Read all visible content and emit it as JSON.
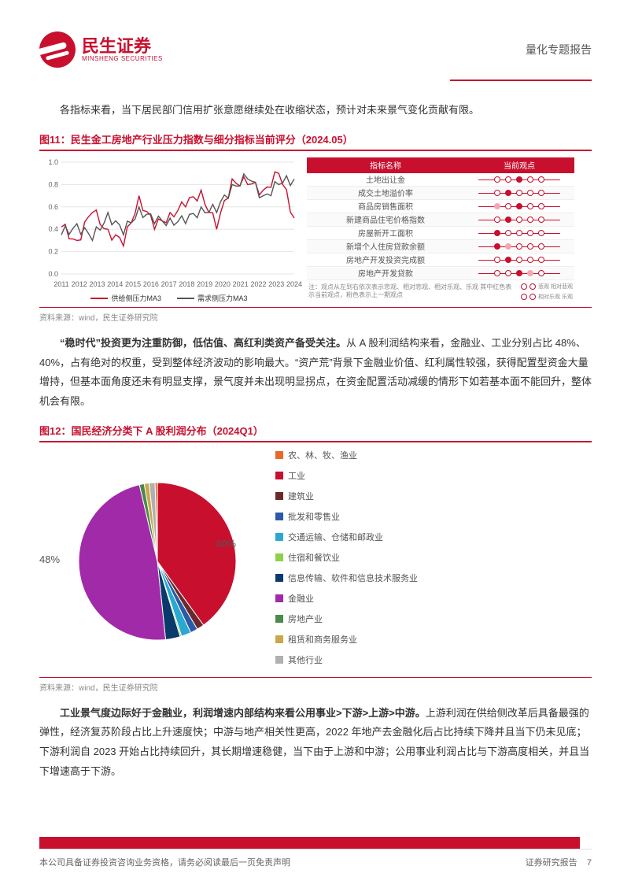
{
  "header": {
    "logo_cn": "民生证券",
    "logo_en": "MINSHENG SECURITIES",
    "right": "量化专题报告"
  },
  "para1": "各指标来看，当下居民部门信用扩张意愿继续处在收缩状态，预计对未来景气变化贡献有限。",
  "fig11": {
    "caption": "图11：民生金工房地产行业压力指数与细分指标当前评分（2024.05）",
    "source": "资料来源：wind，民生证券研究院",
    "chart": {
      "type": "line",
      "ylim": [
        0,
        1.0
      ],
      "yticks": [
        0,
        0.2,
        0.4,
        0.6,
        0.8,
        1.0
      ],
      "xlabels": [
        "2011",
        "2012",
        "2013",
        "2014",
        "2015",
        "2016",
        "2017",
        "2018",
        "2019",
        "2020",
        "2021",
        "2022",
        "2023",
        "2024"
      ],
      "series": [
        {
          "name": "供给侧压力MA3",
          "color": "#c8102e",
          "values": [
            0.42,
            0.3,
            0.55,
            0.4,
            0.25,
            0.7,
            0.4,
            0.55,
            0.6,
            0.75,
            0.4,
            0.85,
            0.8,
            0.75,
            0.9,
            0.5
          ]
        },
        {
          "name": "需求侧压力MA3",
          "color": "#555555",
          "values": [
            0.35,
            0.45,
            0.3,
            0.55,
            0.35,
            0.6,
            0.45,
            0.5,
            0.45,
            0.6,
            0.55,
            0.8,
            0.85,
            0.7,
            0.8,
            0.85
          ]
        }
      ],
      "axis_color": "#aaa",
      "grid_color": "#e5e5e5",
      "font_size": 9
    },
    "table": {
      "head_indicator": "指标名称",
      "head_view": "当前观点",
      "rows": [
        {
          "name": "土地出让金",
          "dots": [
            0,
            0,
            1,
            0,
            0
          ]
        },
        {
          "name": "成交土地溢价率",
          "dots": [
            0,
            1,
            0,
            0,
            0
          ]
        },
        {
          "name": "商品房销售面积",
          "dots": [
            2,
            0,
            1,
            0,
            0
          ]
        },
        {
          "name": "新建商品住宅价格指数",
          "dots": [
            0,
            1,
            0,
            0,
            0
          ]
        },
        {
          "name": "房屋新开工面积",
          "dots": [
            1,
            0,
            0,
            0,
            0
          ]
        },
        {
          "name": "新增个人住房贷款余额",
          "dots": [
            1,
            2,
            0,
            0,
            0
          ]
        },
        {
          "name": "房地产开发投资完成额",
          "dots": [
            0,
            1,
            0,
            0,
            0
          ]
        },
        {
          "name": "房地产开发贷款",
          "dots": [
            0,
            0,
            1,
            2,
            0
          ]
        }
      ],
      "note_text": "注：观点从左到右依次表示悲观、相对悲观、相对乐观、乐观  其中红色表示当前观点，粉色表示上一期观点",
      "note_legend_top": "悲观  相对悲观",
      "note_legend_bot": "相对乐观  乐观"
    }
  },
  "para2_bold": "“稳时代”投资更为注重防御，低估值、高红利类资产备受关注。",
  "para2": "从 A 股利润结构来看，金融业、工业分别占比 48%、40%，占有绝对的权重，受到整体经济波动的影响最大。“资产荒”背景下金融业价值、红利属性较强，获得配置型资金大量增持，但基本面角度还未有明显支撑，景气度并未出现明显拐点，在资金配置活动减缓的情形下如若基本面不能回升，整体机会有限。",
  "fig12": {
    "caption": "图12：国民经济分类下 A 股利润分布（2024Q1）",
    "source": "资料来源：wind，民生证券研究院",
    "pie": {
      "type": "pie",
      "slices": [
        {
          "label": "农、林、牧、渔业",
          "value": 0.5,
          "color": "#e86a2a"
        },
        {
          "label": "工业",
          "value": 40,
          "color": "#c8102e"
        },
        {
          "label": "建筑业",
          "value": 1.5,
          "color": "#6b2a2a"
        },
        {
          "label": "批发和零售业",
          "value": 1.5,
          "color": "#2a5aa8"
        },
        {
          "label": "交通运输、仓储和邮政业",
          "value": 2,
          "color": "#2aa8d0"
        },
        {
          "label": "住宿和餐饮业",
          "value": 0.3,
          "color": "#8dd04a"
        },
        {
          "label": "信息传输、软件和信息技术服务业",
          "value": 3,
          "color": "#0a3a6a"
        },
        {
          "label": "金融业",
          "value": 48,
          "color": "#a02aa8"
        },
        {
          "label": "房地产业",
          "value": 1,
          "color": "#4a8a4a"
        },
        {
          "label": "租赁和商务服务业",
          "value": 1,
          "color": "#c8a84a"
        },
        {
          "label": "其他行业",
          "value": 1.2,
          "color": "#b0b0b0"
        }
      ],
      "label_48": "48%",
      "label_40": "40%",
      "label_fontsize": 13
    }
  },
  "para3_bold": "工业景气度边际好于金融业，利润增速内部结构来看公用事业>下游>上游>中游。",
  "para3": "上游利润在供给侧改革后具备最强的弹性，经济复苏阶段占比上升速度快；中游与地产相关性更高，2022 年地产去金融化后占比持续下降并且当下仍未见底；下游利润自 2023 开始占比持续回升，其长期增速稳健，当下由于上游和中游；公用事业利润占比与下游高度相关，并且当下增速高于下游。",
  "footer": {
    "left": "本公司具备证券投资咨询业务资格，请务必阅读最后一页免责声明",
    "right": "证券研究报告",
    "page": "7"
  }
}
